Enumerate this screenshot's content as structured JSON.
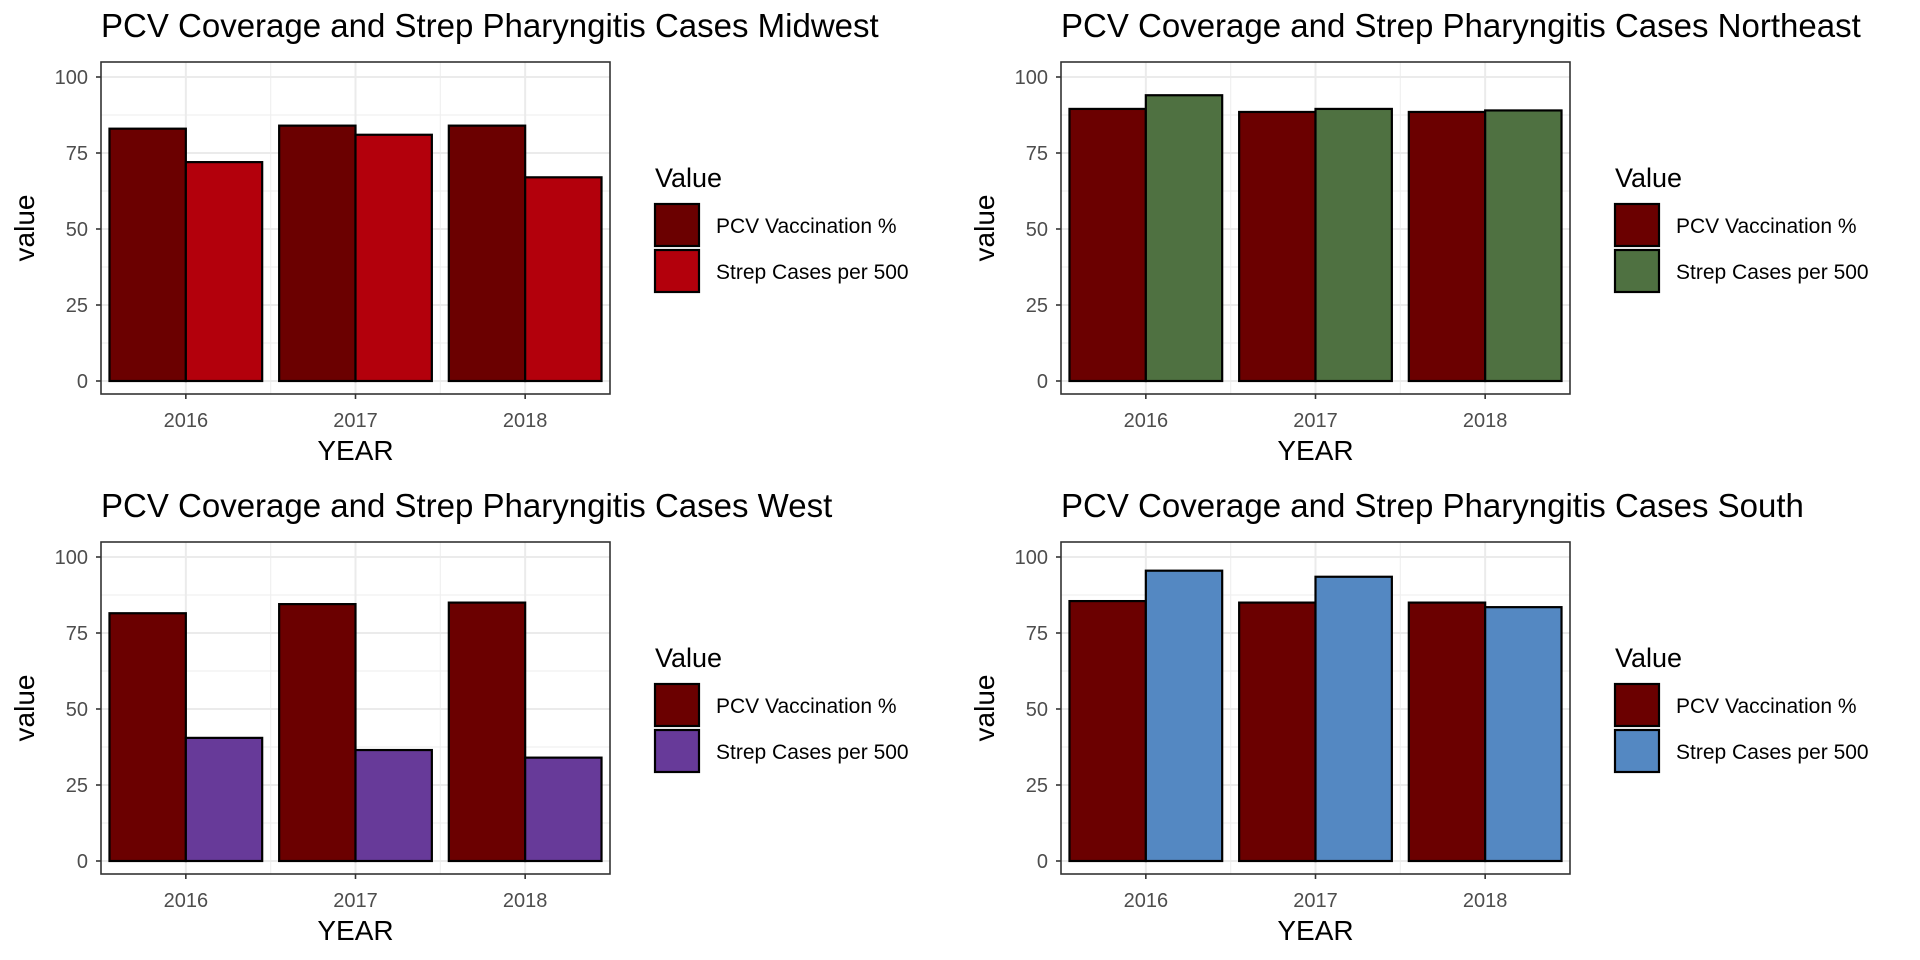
{
  "chart_data": [
    {
      "type": "bar",
      "title": "PCV Coverage and Strep Pharyngitis Cases Midwest",
      "xlabel": "YEAR",
      "ylabel": "value",
      "categories": [
        "2016",
        "2017",
        "2018"
      ],
      "ylim": [
        0,
        100
      ],
      "yticks": [
        0,
        25,
        50,
        75,
        100
      ],
      "grid": true,
      "legend_title": "Value",
      "legend_position": "right",
      "series": [
        {
          "name": "PCV Vaccination %",
          "color": "#6b0000",
          "values": [
            83,
            84,
            84
          ]
        },
        {
          "name": "Strep Cases per 500",
          "color": "#b3000c",
          "values": [
            72,
            81,
            67
          ]
        }
      ]
    },
    {
      "type": "bar",
      "title": "PCV Coverage and Strep Pharyngitis Cases Northeast",
      "xlabel": "YEAR",
      "ylabel": "value",
      "categories": [
        "2016",
        "2017",
        "2018"
      ],
      "ylim": [
        0,
        100
      ],
      "yticks": [
        0,
        25,
        50,
        75,
        100
      ],
      "grid": true,
      "legend_title": "Value",
      "legend_position": "right",
      "series": [
        {
          "name": "PCV Vaccination %",
          "color": "#6b0000",
          "values": [
            89.5,
            88.5,
            88.5
          ]
        },
        {
          "name": "Strep Cases per 500",
          "color": "#4f7141",
          "values": [
            94,
            89.5,
            89
          ]
        }
      ]
    },
    {
      "type": "bar",
      "title": "PCV Coverage and Strep Pharyngitis Cases West",
      "xlabel": "YEAR",
      "ylabel": "value",
      "categories": [
        "2016",
        "2017",
        "2018"
      ],
      "ylim": [
        0,
        100
      ],
      "yticks": [
        0,
        25,
        50,
        75,
        100
      ],
      "grid": true,
      "legend_title": "Value",
      "legend_position": "right",
      "series": [
        {
          "name": "PCV Vaccination %",
          "color": "#6b0000",
          "values": [
            81.5,
            84.5,
            85
          ]
        },
        {
          "name": "Strep Cases per 500",
          "color": "#673a99",
          "values": [
            40.5,
            36.5,
            34
          ]
        }
      ]
    },
    {
      "type": "bar",
      "title": "PCV Coverage and Strep Pharyngitis Cases South",
      "xlabel": "YEAR",
      "ylabel": "value",
      "categories": [
        "2016",
        "2017",
        "2018"
      ],
      "ylim": [
        0,
        100
      ],
      "yticks": [
        0,
        25,
        50,
        75,
        100
      ],
      "grid": true,
      "legend_title": "Value",
      "legend_position": "right",
      "series": [
        {
          "name": "PCV Vaccination %",
          "color": "#6b0000",
          "values": [
            85.5,
            85,
            85
          ]
        },
        {
          "name": "Strep Cases per 500",
          "color": "#5488c2",
          "values": [
            95.5,
            93.5,
            83.5
          ]
        }
      ]
    }
  ]
}
